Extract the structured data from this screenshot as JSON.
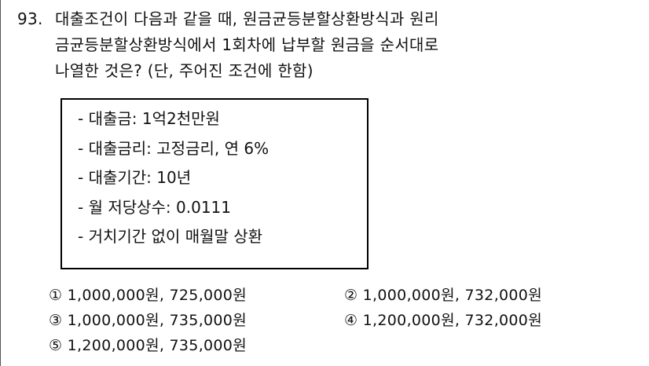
{
  "question": {
    "number": "93.",
    "lines": [
      "대출조건이 다음과 같을 때, 원금균등분할상환방식과 원리",
      "금균등분할상환방식에서 1회차에 납부할 원금을 순서대로",
      "나열한 것은? (단, 주어진 조건에 한함)"
    ]
  },
  "conditions": [
    "- 대출금: 1억2천만원",
    "- 대출금리: 고정금리, 연 6%",
    "- 대출기간: 10년",
    "- 월 저당상수: 0.0111",
    "- 거치기간 없이 매월말 상환"
  ],
  "choices": [
    "① 1,000,000원, 725,000원",
    "② 1,000,000원, 732,000원",
    "③ 1,000,000원, 735,000원",
    "④ 1,200,000원, 732,000원",
    "⑤ 1,200,000원, 735,000원"
  ]
}
